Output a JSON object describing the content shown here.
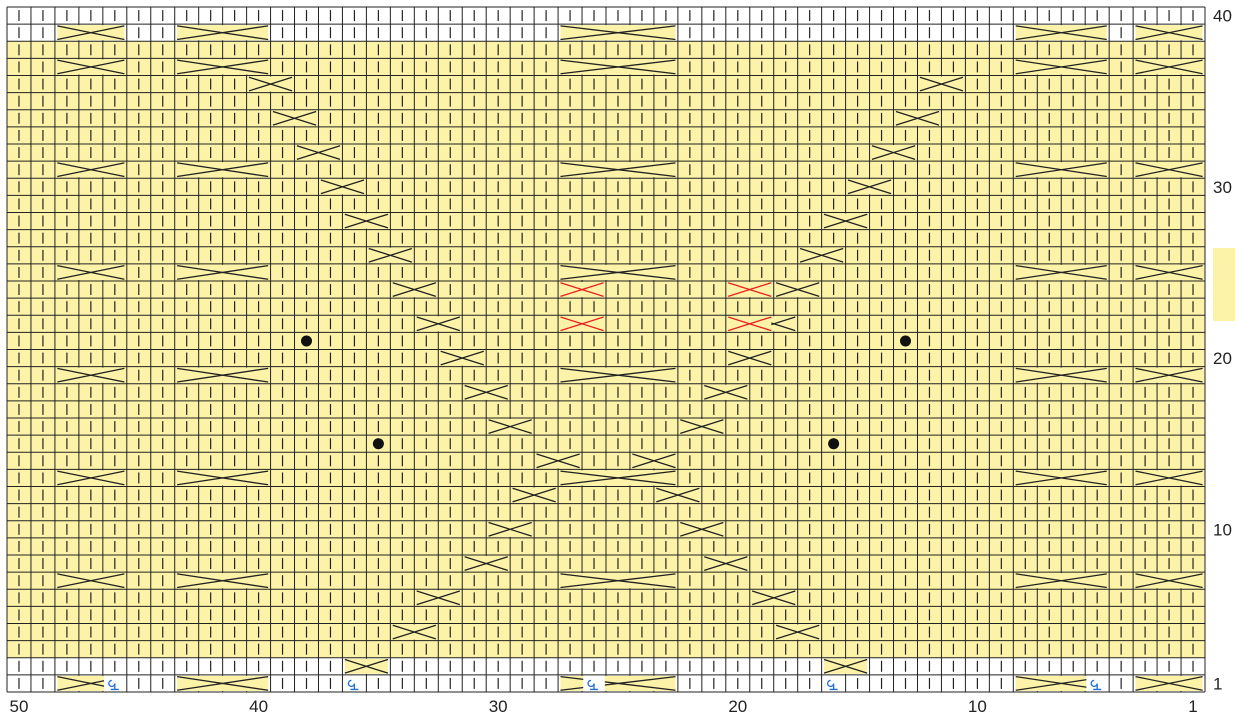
{
  "chart": {
    "columns": 50,
    "rows": 40,
    "row_labels": [
      "1",
      "10",
      "20",
      "30",
      "40"
    ],
    "row_label_rows": [
      1,
      10,
      20,
      30,
      40
    ],
    "col_labels": [
      "50",
      "40",
      "30",
      "20",
      "10",
      "1"
    ],
    "col_label_cols": [
      50,
      40,
      30,
      20,
      10,
      1
    ],
    "shaded_rows": [
      3,
      38
    ],
    "colors": {
      "shade": "#fdf3a8",
      "grid": "#222222",
      "symbol": "#222222",
      "accent": "#e8201f",
      "twist": "#1f6fd0",
      "bobble": "#111111",
      "legend_swatch": "#fdf3a8"
    },
    "symbols": {
      "knit": "vertical-bar",
      "cable": "x-cross",
      "bobble": "filled-dot",
      "twisted": "loop-glyph"
    },
    "bobbles": [
      [
        38,
        21
      ],
      [
        35,
        15
      ],
      [
        13,
        21
      ],
      [
        16,
        15
      ]
    ],
    "twist_marks": [
      [
        46,
        1
      ],
      [
        36,
        1
      ],
      [
        26,
        1
      ],
      [
        16,
        1
      ],
      [
        5,
        1
      ]
    ]
  }
}
